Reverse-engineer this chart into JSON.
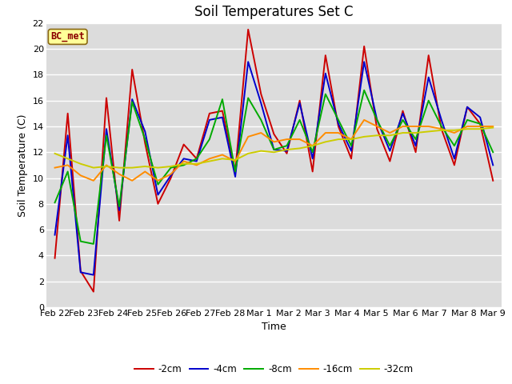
{
  "title": "Soil Temperatures Set C",
  "xlabel": "Time",
  "ylabel": "Soil Temperature (C)",
  "ylim": [
    0,
    22
  ],
  "yticks": [
    0,
    2,
    4,
    6,
    8,
    10,
    12,
    14,
    16,
    18,
    20,
    22
  ],
  "x_labels": [
    "Feb 22",
    "Feb 23",
    "Feb 24",
    "Feb 25",
    "Feb 26",
    "Feb 27",
    "Feb 28",
    "Mar 1",
    "Mar 2",
    "Mar 3",
    "Mar 4",
    "Mar 5",
    "Mar 6",
    "Mar 7",
    "Mar 8",
    "Mar 9"
  ],
  "annotation_text": "BC_met",
  "annotation_color": "#8B0000",
  "annotation_bg": "#FFFF99",
  "annotation_border": "#8B6914",
  "series": {
    "-2cm": {
      "color": "#CC0000",
      "values": [
        3.8,
        15.0,
        2.8,
        1.2,
        16.2,
        6.7,
        18.4,
        12.7,
        8.0,
        10.0,
        12.6,
        11.5,
        15.0,
        15.2,
        10.5,
        21.5,
        16.5,
        13.4,
        11.9,
        16.0,
        10.5,
        19.5,
        14.0,
        11.5,
        20.2,
        13.8,
        11.3,
        15.2,
        12.0,
        19.5,
        13.8,
        11.0,
        15.5,
        14.2,
        9.8
      ]
    },
    "-4cm": {
      "color": "#0000CC",
      "values": [
        5.6,
        13.3,
        2.7,
        2.5,
        13.8,
        7.5,
        16.1,
        13.6,
        8.7,
        10.2,
        11.5,
        11.3,
        14.5,
        14.7,
        10.1,
        19.0,
        15.8,
        12.2,
        12.1,
        15.8,
        11.5,
        18.1,
        14.2,
        12.1,
        19.0,
        14.5,
        12.1,
        15.0,
        12.5,
        17.8,
        14.5,
        11.5,
        15.5,
        14.7,
        11.0
      ]
    },
    "-8cm": {
      "color": "#00AA00",
      "values": [
        8.1,
        10.5,
        5.1,
        4.9,
        13.3,
        7.8,
        15.9,
        13.0,
        9.5,
        10.8,
        11.0,
        11.5,
        13.0,
        16.1,
        10.5,
        16.2,
        14.5,
        12.2,
        12.5,
        14.5,
        12.0,
        16.5,
        14.5,
        12.5,
        16.8,
        14.5,
        12.5,
        14.5,
        13.0,
        16.0,
        14.0,
        12.5,
        14.5,
        14.2,
        12.0
      ]
    },
    "-16cm": {
      "color": "#FF8C00",
      "values": [
        10.8,
        11.0,
        10.2,
        9.8,
        11.0,
        10.3,
        9.8,
        10.5,
        9.8,
        10.3,
        11.3,
        11.0,
        11.5,
        11.8,
        11.3,
        13.2,
        13.5,
        12.8,
        13.0,
        13.0,
        12.5,
        13.5,
        13.5,
        13.0,
        14.5,
        14.0,
        13.5,
        14.0,
        14.0,
        14.0,
        13.8,
        13.5,
        14.0,
        14.0,
        14.0
      ]
    },
    "-32cm": {
      "color": "#CCCC00",
      "values": [
        11.9,
        11.5,
        11.1,
        10.8,
        10.9,
        10.8,
        10.8,
        10.9,
        10.8,
        10.9,
        11.1,
        11.1,
        11.3,
        11.5,
        11.4,
        11.9,
        12.1,
        12.0,
        12.2,
        12.3,
        12.5,
        12.8,
        13.0,
        13.0,
        13.2,
        13.3,
        13.3,
        13.5,
        13.5,
        13.6,
        13.7,
        13.7,
        13.8,
        13.8,
        13.9
      ]
    }
  },
  "legend_order": [
    "-2cm",
    "-4cm",
    "-8cm",
    "-16cm",
    "-32cm"
  ],
  "bg_color": "#DCDCDC",
  "title_fontsize": 12,
  "axis_label_fontsize": 9,
  "tick_fontsize": 8
}
